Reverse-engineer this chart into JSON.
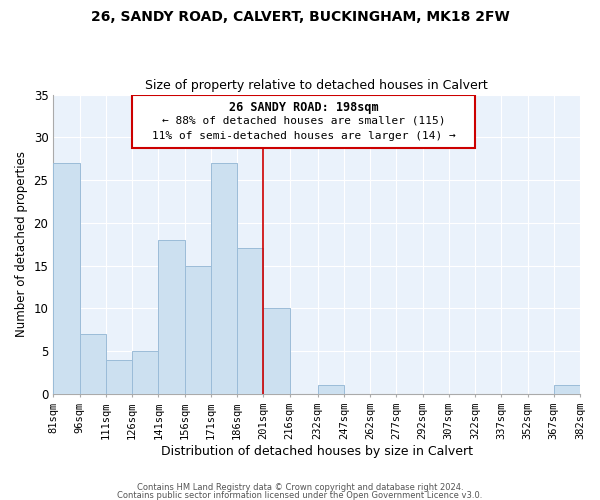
{
  "title1": "26, SANDY ROAD, CALVERT, BUCKINGHAM, MK18 2FW",
  "title2": "Size of property relative to detached houses in Calvert",
  "xlabel": "Distribution of detached houses by size in Calvert",
  "ylabel": "Number of detached properties",
  "bin_edges": [
    81,
    96,
    111,
    126,
    141,
    156,
    171,
    186,
    201,
    216,
    232,
    247,
    262,
    277,
    292,
    307,
    322,
    337,
    352,
    367,
    382
  ],
  "bin_counts": [
    27,
    7,
    4,
    5,
    18,
    15,
    27,
    17,
    10,
    0,
    1,
    0,
    0,
    0,
    0,
    0,
    0,
    0,
    0,
    1
  ],
  "tick_labels": [
    "81sqm",
    "96sqm",
    "111sqm",
    "126sqm",
    "141sqm",
    "156sqm",
    "171sqm",
    "186sqm",
    "201sqm",
    "216sqm",
    "232sqm",
    "247sqm",
    "262sqm",
    "277sqm",
    "292sqm",
    "307sqm",
    "322sqm",
    "337sqm",
    "352sqm",
    "367sqm",
    "382sqm"
  ],
  "bar_color": "#cce0f0",
  "bar_edge_color": "#9bbcd8",
  "reference_line_x": 201,
  "reference_line_color": "#cc0000",
  "ylim": [
    0,
    35
  ],
  "yticks": [
    0,
    5,
    10,
    15,
    20,
    25,
    30,
    35
  ],
  "annotation_title": "26 SANDY ROAD: 198sqm",
  "annotation_line1": "← 88% of detached houses are smaller (115)",
  "annotation_line2": "11% of semi-detached houses are larger (14) →",
  "footer1": "Contains HM Land Registry data © Crown copyright and database right 2024.",
  "footer2": "Contains public sector information licensed under the Open Government Licence v3.0.",
  "box_color": "#cc0000",
  "background_color": "#ffffff",
  "plot_bg_color": "#eaf2fb",
  "grid_color": "#ffffff"
}
